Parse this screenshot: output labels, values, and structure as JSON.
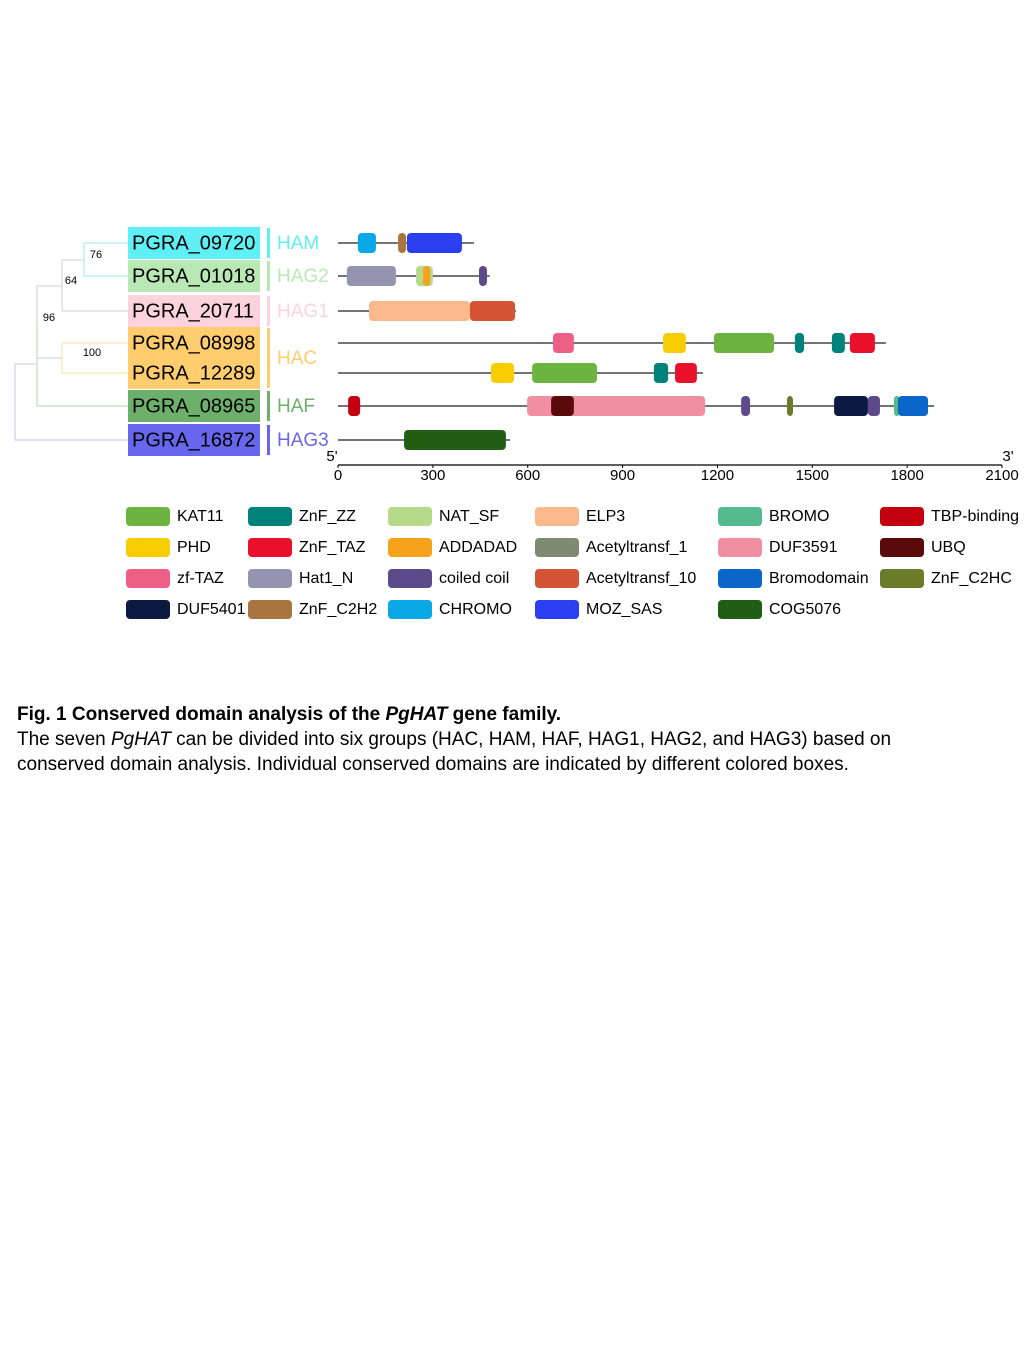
{
  "figure": {
    "tree": {
      "bootstrap": [
        "76",
        "64",
        "96",
        "100"
      ]
    },
    "groups": [
      {
        "name": "HAM",
        "color": "#5ff0f5",
        "genes": [
          {
            "name": "PGRA_09720",
            "length": 430,
            "domains": [
              {
                "domain": "CHROMO",
                "start": 63,
                "end": 120
              },
              {
                "domain": "ZnF_C2H2",
                "start": 190,
                "end": 215
              },
              {
                "domain": "MOZ_SAS",
                "start": 218,
                "end": 392
              }
            ]
          }
        ]
      },
      {
        "name": "HAG2",
        "color": "#b8e8b4",
        "genes": [
          {
            "name": "PGRA_01018",
            "length": 480,
            "domains": [
              {
                "domain": "Hat1_N",
                "start": 28,
                "end": 183
              },
              {
                "domain": "NAT_SF",
                "start": 247,
                "end": 300
              },
              {
                "domain": "ADDADAD",
                "start": 269,
                "end": 291
              },
              {
                "domain": "coiled coil",
                "start": 446,
                "end": 471
              }
            ]
          }
        ]
      },
      {
        "name": "HAG1",
        "color": "#fcd3dc",
        "genes": [
          {
            "name": "PGRA_20711",
            "length": 563,
            "domains": [
              {
                "domain": "ELP3",
                "start": 98,
                "end": 417
              },
              {
                "domain": "Acetyltransf_10",
                "start": 417,
                "end": 560
              }
            ]
          }
        ]
      },
      {
        "name": "HAC",
        "color": "#ffcc6e",
        "genes": [
          {
            "name": "PGRA_08998",
            "length": 1733,
            "domains": [
              {
                "domain": "zf-TAZ",
                "start": 680,
                "end": 746
              },
              {
                "domain": "PHD",
                "start": 1028,
                "end": 1100
              },
              {
                "domain": "KAT11",
                "start": 1189,
                "end": 1379
              },
              {
                "domain": "ZnF_ZZ",
                "start": 1445,
                "end": 1474
              },
              {
                "domain": "ZnF_ZZ",
                "start": 1562,
                "end": 1603
              },
              {
                "domain": "ZnF_TAZ",
                "start": 1619,
                "end": 1698
              }
            ]
          },
          {
            "name": "PGRA_12289",
            "length": 1154,
            "domains": [
              {
                "domain": "PHD",
                "start": 484,
                "end": 557
              },
              {
                "domain": "KAT11",
                "start": 614,
                "end": 819
              },
              {
                "domain": "ZnF_ZZ",
                "start": 999,
                "end": 1044
              },
              {
                "domain": "ZnF_TAZ",
                "start": 1066,
                "end": 1135
              }
            ]
          }
        ]
      },
      {
        "name": "HAF",
        "color": "#6cb06c",
        "genes": [
          {
            "name": "PGRA_08965",
            "length": 1885,
            "domains": [
              {
                "domain": "TBP-binding",
                "start": 32,
                "end": 70
              },
              {
                "domain": "DUF3591",
                "start": 598,
                "end": 1161
              },
              {
                "domain": "UBQ",
                "start": 674,
                "end": 746
              },
              {
                "domain": "coiled coil",
                "start": 1275,
                "end": 1303
              },
              {
                "domain": "ZnF_C2HC",
                "start": 1420,
                "end": 1439
              },
              {
                "domain": "DUF5401",
                "start": 1569,
                "end": 1676
              },
              {
                "domain": "coiled coil",
                "start": 1676,
                "end": 1714
              },
              {
                "domain": "BROMO",
                "start": 1758,
                "end": 1777
              },
              {
                "domain": "Bromodomain",
                "start": 1771,
                "end": 1866
              }
            ]
          }
        ]
      },
      {
        "name": "HAG3",
        "color": "#6666ee",
        "genes": [
          {
            "name": "PGRA_16872",
            "length": 544,
            "domains": [
              {
                "domain": "COG5076",
                "start": 209,
                "end": 531
              }
            ]
          }
        ]
      }
    ],
    "axis": {
      "start_label": "5'",
      "end_label": "3'",
      "xlim": [
        0,
        2100
      ],
      "xticks": [
        0,
        300,
        600,
        900,
        1200,
        1500,
        1800,
        2100
      ]
    },
    "legend": [
      {
        "name": "KAT11",
        "color": "#6db33f"
      },
      {
        "name": "PHD",
        "color": "#f7cc00"
      },
      {
        "name": "zf-TAZ",
        "color": "#ee5f85"
      },
      {
        "name": "DUF5401",
        "color": "#0a1a40"
      },
      {
        "name": "ZnF_ZZ",
        "color": "#00827a"
      },
      {
        "name": "ZnF_TAZ",
        "color": "#e8102a"
      },
      {
        "name": "Hat1_N",
        "color": "#9494b0"
      },
      {
        "name": "ZnF_C2H2",
        "color": "#a87540"
      },
      {
        "name": "NAT_SF",
        "color": "#b5da8a"
      },
      {
        "name": "ADDADAD",
        "color": "#f7a21b"
      },
      {
        "name": "coiled coil",
        "color": "#5c4a8a"
      },
      {
        "name": "CHROMO",
        "color": "#0ba8e8"
      },
      {
        "name": "ELP3",
        "color": "#f9b98a"
      },
      {
        "name": "Acetyltransf_1",
        "color": "#7e8a72"
      },
      {
        "name": "Acetyltransf_10",
        "color": "#d45535"
      },
      {
        "name": "MOZ_SAS",
        "color": "#2a3ff0"
      },
      {
        "name": "BROMO",
        "color": "#55bb8e"
      },
      {
        "name": "DUF3591",
        "color": "#f18fa2"
      },
      {
        "name": "Bromodomain",
        "color": "#0a66c8"
      },
      {
        "name": "COG5076",
        "color": "#1f5e13"
      },
      {
        "name": "TBP-binding",
        "color": "#c3000f"
      },
      {
        "name": "UBQ",
        "color": "#5a0a0a"
      },
      {
        "name": "ZnF_C2HC",
        "color": "#6b7b2a"
      }
    ],
    "caption": {
      "title": [
        "Fig. 1 Conserved domain analysis of the ",
        "PgHAT",
        " gene family."
      ],
      "body": [
        "The seven ",
        "PgHAT",
        " can be divided into six groups (HAC, HAM, HAF, HAG1, HAG2, and HAG3) based on conserved domain analysis. Individual conserved domains are indicated by different colored boxes."
      ]
    }
  }
}
